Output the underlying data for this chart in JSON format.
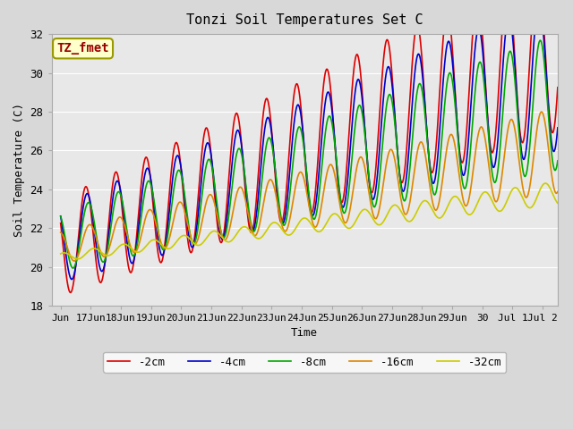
{
  "title": "Tonzi Soil Temperatures Set C",
  "xlabel": "Time",
  "ylabel": "Soil Temperature (C)",
  "ylim": [
    18,
    32
  ],
  "xlim_days": 16.5,
  "annotation_text": "TZ_fmet",
  "annotation_bg": "#ffffcc",
  "annotation_border": "#cccc00",
  "annotation_fg": "#990000",
  "bg_color": "#e8e8e8",
  "plot_bg": "#e8e8e8",
  "line_colors": [
    "#dd0000",
    "#0000cc",
    "#00aa00",
    "#dd8800",
    "#cccc00"
  ],
  "line_labels": [
    "-2cm",
    "-4cm",
    "-8cm",
    "-16cm",
    "-32cm"
  ],
  "tick_labels": [
    "Jun 17",
    "Jun 18",
    "Jun 19",
    "Jun 20",
    "Jun 21",
    "Jun 22",
    "Jun 23",
    "Jun 24",
    "Jun 25",
    "Jun 26",
    "Jun 27",
    "Jun 28",
    "Jun 29",
    "Jun 30",
    "Jul 1",
    "Jul 2"
  ],
  "grid_color": "#ffffff",
  "font": "monospace"
}
